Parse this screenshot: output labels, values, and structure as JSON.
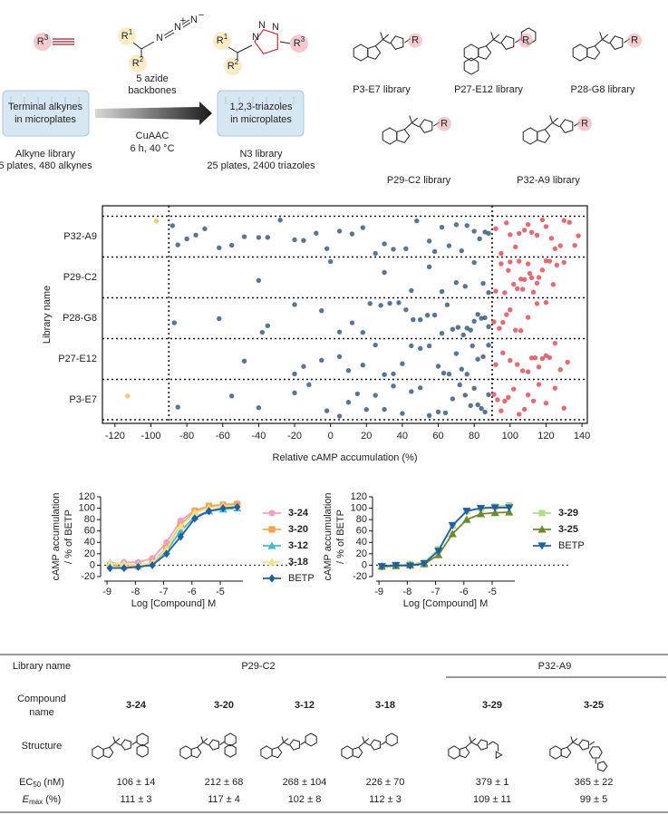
{
  "scheme": {
    "alkyne_r": {
      "text": "R",
      "sup": "3"
    },
    "azide_r1": {
      "text": "R",
      "sup": "1"
    },
    "azide_r2": {
      "text": "R",
      "sup": "2"
    },
    "azide_atoms": [
      "N",
      "N",
      "N"
    ],
    "azide_charges": [
      "+",
      "−"
    ],
    "product_r1": {
      "text": "R",
      "sup": "1"
    },
    "product_r2": {
      "text": "R",
      "sup": "2"
    },
    "product_r3": {
      "text": "R",
      "sup": "3"
    },
    "triazole_atoms": [
      "N",
      "N",
      "N"
    ],
    "plate_in": [
      "Terminal alkynes",
      "in microplates"
    ],
    "plate_in_caption": [
      "Alkyne library",
      "5 plates, 480 alkynes"
    ],
    "arrow_above": [
      "5 azide",
      "backbones"
    ],
    "arrow_below": [
      "CuAAC",
      "6 h, 40 °C"
    ],
    "plate_out": [
      "1,2,3-triazoles",
      "in microplates"
    ],
    "plate_out_caption": [
      "N3 library",
      "25 plates, 2400 triazoles"
    ],
    "libraries": [
      {
        "label": "P3-E7 library",
        "r": "R"
      },
      {
        "label": "P27-E12 library",
        "r": "R"
      },
      {
        "label": "P28-G8 library",
        "r": "R"
      },
      {
        "label": "P29-C2 library",
        "r": "R"
      },
      {
        "label": "P32-A9 library",
        "r": "R"
      }
    ]
  },
  "chart_data": [
    {
      "type": "strip",
      "categories": [
        "P32-A9",
        "P29-C2",
        "P28-G8",
        "P27-E12",
        "P3-E7"
      ],
      "y_label": "Library name",
      "x_label": "Relative cAMP accumulation (%)",
      "xlim": [
        -127,
        143
      ],
      "xticks": [
        -120,
        -100,
        -80,
        -60,
        -40,
        -20,
        0,
        20,
        40,
        60,
        80,
        100,
        120,
        140
      ],
      "reference_lines": [
        -90,
        90
      ],
      "series": [
        {
          "color": "#3d5d80",
          "values": [
            [
              -88,
              -85,
              -80,
              -75,
              -70,
              -62,
              -55,
              -48,
              -40,
              -35,
              -28,
              -20,
              -15,
              -8,
              -2,
              5,
              12,
              18,
              25,
              30,
              35,
              42,
              48,
              55,
              58,
              62,
              66,
              70,
              73,
              76,
              80,
              83,
              86,
              88
            ],
            [
              -40,
              0,
              30,
              45,
              55,
              62,
              70,
              75,
              80,
              85,
              88
            ],
            [
              -87,
              -62,
              -38,
              -35,
              -20,
              -5,
              5,
              12,
              18,
              22,
              28,
              33,
              38,
              42,
              46,
              50,
              54,
              58,
              62,
              65,
              68,
              71,
              74,
              76,
              78,
              80,
              82,
              84,
              86,
              88
            ],
            [
              -48,
              -20,
              -15,
              -5,
              5,
              10,
              18,
              25,
              30,
              35,
              40,
              45,
              50,
              55,
              60,
              63,
              66,
              70,
              73,
              76,
              79,
              82,
              85,
              88
            ],
            [
              -85,
              -55,
              -40,
              -20,
              -12,
              -2,
              5,
              10,
              15,
              20,
              25,
              30,
              35,
              40,
              45,
              50,
              55,
              60,
              64,
              68,
              72,
              75,
              78,
              80,
              82,
              84,
              86,
              88
            ]
          ]
        },
        {
          "color": "#e0505c",
          "values": [
            [
              92,
              95,
              98,
              100,
              103,
              105,
              108,
              110,
              112,
              115,
              118,
              120,
              123,
              125,
              128,
              130,
              133,
              136,
              138
            ],
            [
              92,
              95,
              97,
              99,
              100,
              102,
              104,
              105,
              106,
              107,
              108,
              110,
              111,
              112,
              113,
              115,
              116,
              118,
              120,
              122,
              124,
              126,
              130
            ],
            [
              91,
              94,
              96,
              98,
              100,
              103,
              106,
              110,
              115,
              120
            ],
            [
              92,
              96,
              100,
              104,
              107,
              110,
              112,
              114,
              116,
              118,
              120,
              122,
              125,
              128,
              132
            ],
            [
              91,
              93,
              95,
              97,
              99,
              102,
              105,
              108,
              110,
              113,
              116,
              120,
              125,
              130
            ]
          ]
        },
        {
          "color": "#f0c060",
          "values": [
            [
              -97
            ],
            [],
            [],
            [],
            [
              -113
            ]
          ]
        }
      ]
    },
    {
      "type": "dose_response",
      "x_label": "Log [Compound] M",
      "y_label": [
        "cAMP accumulation",
        "/ % of BETP"
      ],
      "x": [
        -8.9,
        -8.4,
        -7.9,
        -7.4,
        -6.9,
        -6.4,
        -5.9,
        -5.4,
        -4.9,
        -4.4
      ],
      "xlim": [
        -9.1,
        -4.2
      ],
      "xticks": [
        -9,
        -8,
        -7,
        -6,
        -5
      ],
      "ylim": [
        -20,
        120
      ],
      "yticks": [
        -20,
        0,
        20,
        40,
        60,
        80,
        100,
        120
      ],
      "reference_lines": [
        0
      ],
      "series": [
        {
          "name": "3-24",
          "bold": true,
          "color": "#f0a0c8",
          "marker": "circle",
          "values": [
            -2,
            5,
            5,
            12,
            40,
            78,
            96,
            103,
            106,
            108
          ]
        },
        {
          "name": "3-20",
          "bold": true,
          "color": "#f5a450",
          "marker": "square",
          "values": [
            0,
            -3,
            -2,
            5,
            30,
            70,
            95,
            104,
            106,
            107
          ]
        },
        {
          "name": "3-12",
          "bold": true,
          "color": "#45bcc8",
          "marker": "triangle",
          "values": [
            4,
            2,
            0,
            3,
            25,
            60,
            85,
            95,
            98,
            100
          ]
        },
        {
          "name": "3-18",
          "bold": true,
          "color": "#f3e48a",
          "marker": "triangle",
          "values": [
            3,
            2,
            0,
            4,
            28,
            68,
            92,
            100,
            104,
            103
          ]
        },
        {
          "name": "BETP",
          "bold": false,
          "color": "#1f5fa8",
          "marker": "diamond",
          "values": [
            -5,
            -5,
            -3,
            0,
            20,
            50,
            82,
            95,
            100,
            102
          ]
        }
      ]
    },
    {
      "type": "dose_response",
      "x_label": "Log [Compound] M",
      "y_label": [
        "cAMP accumulation",
        "/ % of BETP"
      ],
      "x": [
        -8.9,
        -8.4,
        -7.9,
        -7.4,
        -6.9,
        -6.4,
        -5.9,
        -5.4,
        -4.9,
        -4.4
      ],
      "xlim": [
        -9.1,
        -4.2
      ],
      "xticks": [
        -9,
        -8,
        -7,
        -6,
        -5
      ],
      "ylim": [
        -20,
        120
      ],
      "yticks": [
        -20,
        0,
        20,
        40,
        60,
        80,
        100,
        120
      ],
      "reference_lines": [
        0
      ],
      "series": [
        {
          "name": "3-29",
          "bold": true,
          "color": "#b5dc8c",
          "marker": "square",
          "values": [
            -3,
            -2,
            2,
            5,
            28,
            70,
            95,
            100,
            103,
            105
          ]
        },
        {
          "name": "3-25",
          "bold": true,
          "color": "#6b8a2a",
          "marker": "triangle",
          "values": [
            -2,
            -1,
            0,
            2,
            18,
            55,
            80,
            90,
            92,
            93
          ]
        },
        {
          "name": "BETP",
          "bold": false,
          "color": "#1f5fa8",
          "marker": "tridown",
          "values": [
            -2,
            0,
            -1,
            3,
            25,
            70,
            95,
            100,
            101,
            101
          ]
        }
      ]
    }
  ],
  "table": {
    "header": [
      "Library name",
      "P29-C2",
      "P32-A9"
    ],
    "row_labels": [
      [
        "Compound",
        "name"
      ],
      "Structure",
      {
        "main": "EC",
        "sub": "50",
        "rest": " (nM)"
      },
      {
        "main": "E",
        "sub": "max",
        "rest": " (%)"
      }
    ],
    "compounds": [
      "3-24",
      "3-20",
      "3-12",
      "3-18",
      "3-29",
      "3-25"
    ],
    "ec50": [
      "106 ± 14",
      "212 ± 68",
      "268 ± 104",
      "226 ± 70",
      "379 ± 1",
      "365 ± 22"
    ],
    "emax": [
      "111 ± 3",
      "117 ± 4",
      "102 ± 8",
      "112 ± 3",
      "109 ± 11",
      "99 ± 5"
    ]
  }
}
